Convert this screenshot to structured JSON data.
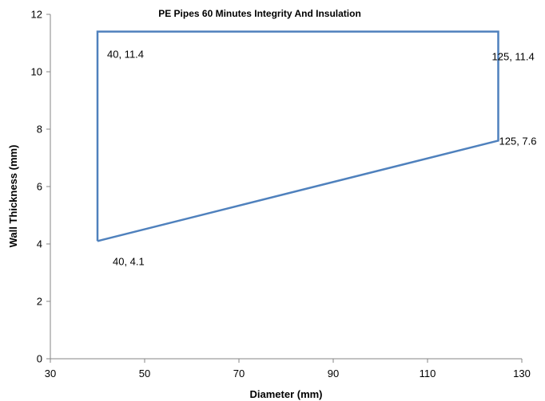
{
  "chart_data": {
    "type": "scatter",
    "title": "PE Pipes 60 Minutes Integrity And Insulation",
    "xlabel": "Diameter (mm)",
    "ylabel": "Wall Thickness (mm)",
    "xlim": [
      30,
      130
    ],
    "ylim": [
      0,
      12
    ],
    "xticks": [
      "30",
      "50",
      "70",
      "90",
      "110",
      "130"
    ],
    "yticks": [
      "0",
      "2",
      "4",
      "6",
      "8",
      "10",
      "12"
    ],
    "grid": false,
    "legend": "none",
    "series": [
      {
        "color": "#4f81bd",
        "points": [
          {
            "x": 40,
            "y": 4.1,
            "label": "40, 4.1"
          },
          {
            "x": 40,
            "y": 11.4,
            "label": "40, 11.4"
          },
          {
            "x": 125,
            "y": 11.4,
            "label": "125, 11.4"
          },
          {
            "x": 125,
            "y": 7.6,
            "label": "125, 7.6"
          },
          {
            "x": 40,
            "y": 4.1
          }
        ]
      }
    ]
  }
}
